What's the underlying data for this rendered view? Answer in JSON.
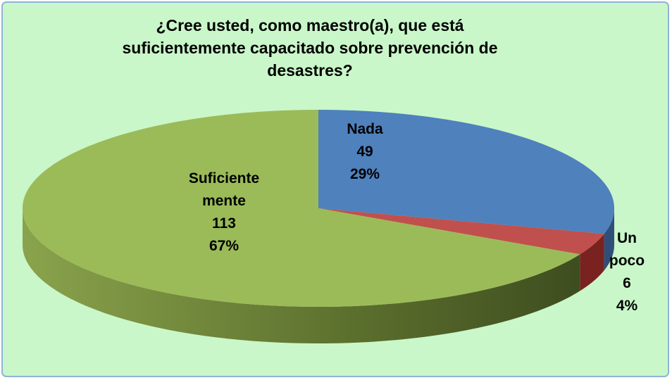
{
  "chart_data": {
    "type": "pie3d",
    "title": "¿Cree usted, como maestro(a), que está\nsuficientemente capacitado sobre prevención de\ndesastres?",
    "categories": [
      "Nada",
      "Un poco",
      "Suficiente\nmente"
    ],
    "values": [
      49,
      6,
      113
    ],
    "percent_labels": [
      "29%",
      "4%",
      "67%"
    ],
    "colors": [
      "#4f81bd",
      "#c0504d",
      "#9bbb59"
    ]
  }
}
